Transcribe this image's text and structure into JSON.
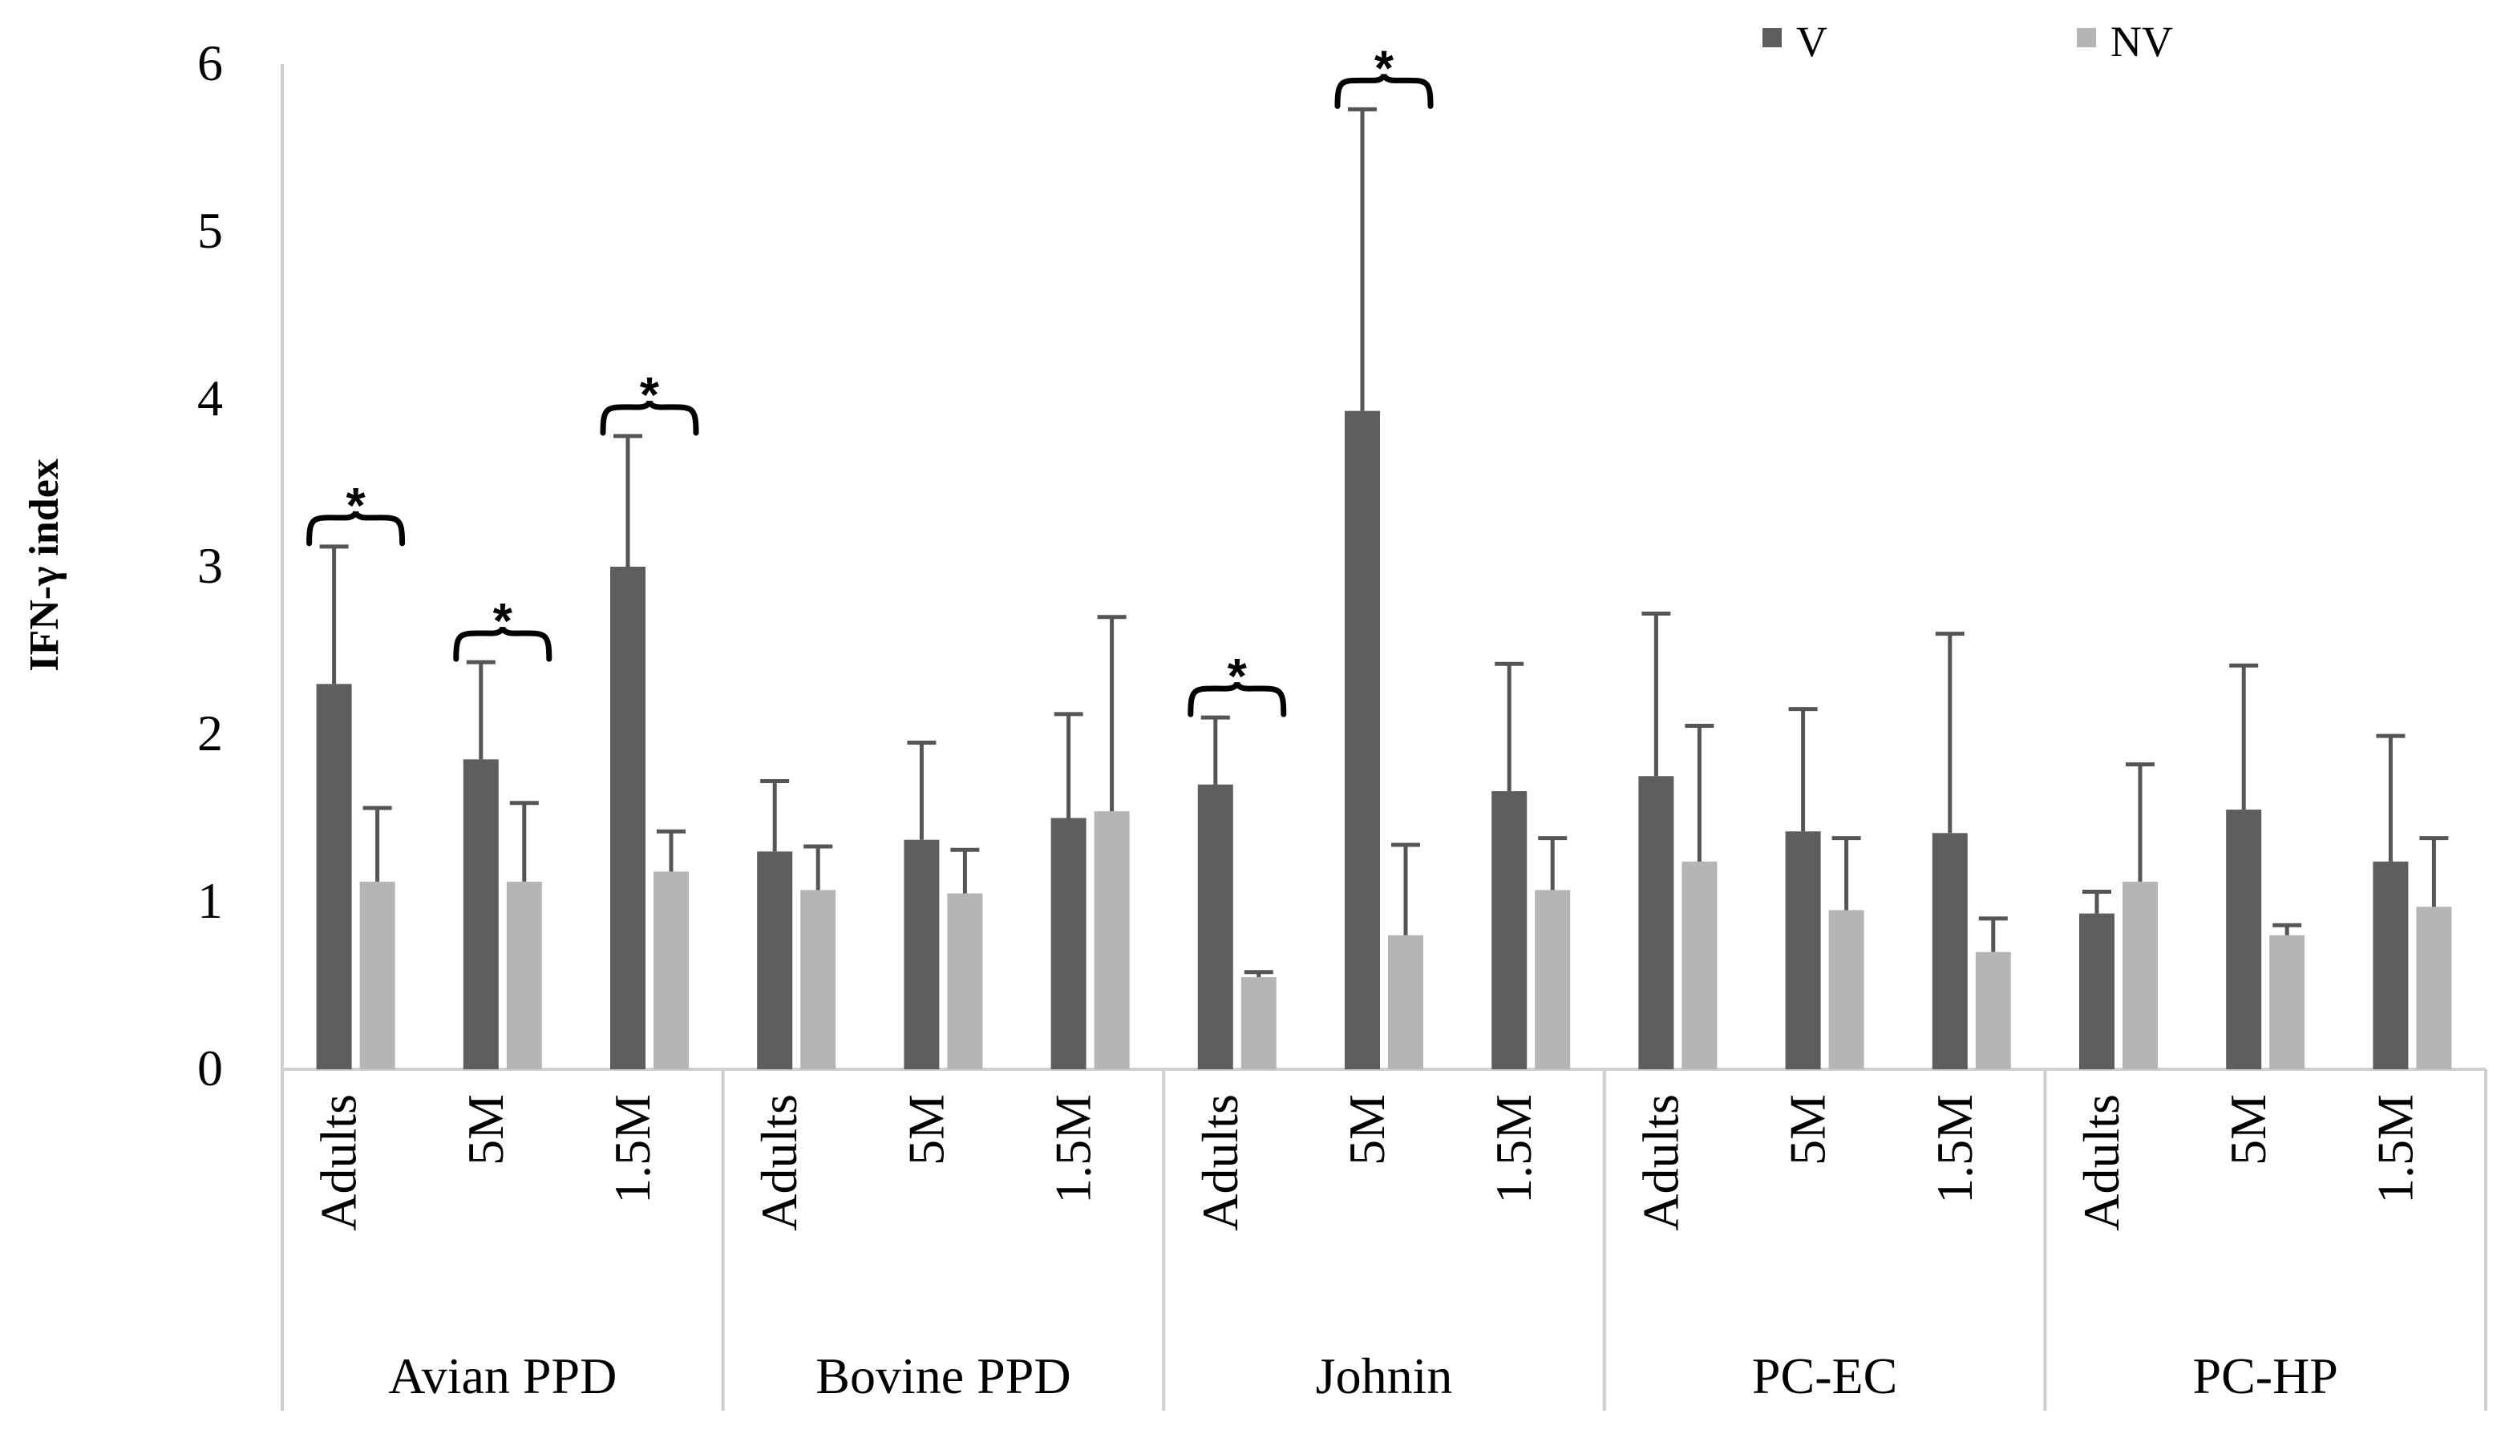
{
  "colors": {
    "v": "#5e5e5e",
    "nv": "#b5b5b5",
    "axis": "#cfcfcf",
    "err": "#555555",
    "text": "#000000"
  },
  "chart_data": {
    "type": "bar",
    "title": "",
    "ylabel": "IFN-γ index",
    "xlabel": "",
    "ylim": [
      0,
      6
    ],
    "yticks": [
      "0",
      "1",
      "2",
      "3",
      "4",
      "5",
      "6"
    ],
    "grid": false,
    "legend_position": "top-right",
    "groups": [
      "Avian PPD",
      "Bovine PPD",
      "Johnin",
      "PC-EC",
      "PC-HP"
    ],
    "subcategories": [
      "Adults",
      "5M",
      "1.5M"
    ],
    "series": [
      {
        "name": "V",
        "values": [
          2.3,
          1.85,
          3.0,
          1.3,
          1.37,
          1.5,
          1.7,
          3.93,
          1.66,
          1.75,
          1.42,
          1.41,
          0.93,
          1.55,
          1.24
        ],
        "error_upper": [
          3.12,
          2.43,
          3.78,
          1.72,
          1.95,
          2.12,
          2.1,
          5.73,
          2.42,
          2.72,
          2.15,
          2.6,
          1.06,
          2.41,
          1.99
        ]
      },
      {
        "name": "NV",
        "values": [
          1.12,
          1.12,
          1.18,
          1.07,
          1.05,
          1.54,
          0.55,
          0.8,
          1.07,
          1.24,
          0.95,
          0.7,
          1.12,
          0.8,
          0.97
        ],
        "error_upper": [
          1.56,
          1.59,
          1.42,
          1.33,
          1.31,
          2.7,
          0.58,
          1.34,
          1.38,
          2.05,
          1.38,
          0.9,
          1.82,
          0.86,
          1.38
        ]
      }
    ],
    "annotations": [
      {
        "text": "*",
        "bar_index": 0,
        "at": 3.12
      },
      {
        "text": "*",
        "bar_index": 1,
        "at": 2.43
      },
      {
        "text": "*",
        "bar_index": 2,
        "at": 3.78
      },
      {
        "text": "*",
        "bar_index": 6,
        "at": 2.1
      },
      {
        "text": "*",
        "bar_index": 7,
        "at": 5.73
      }
    ]
  }
}
